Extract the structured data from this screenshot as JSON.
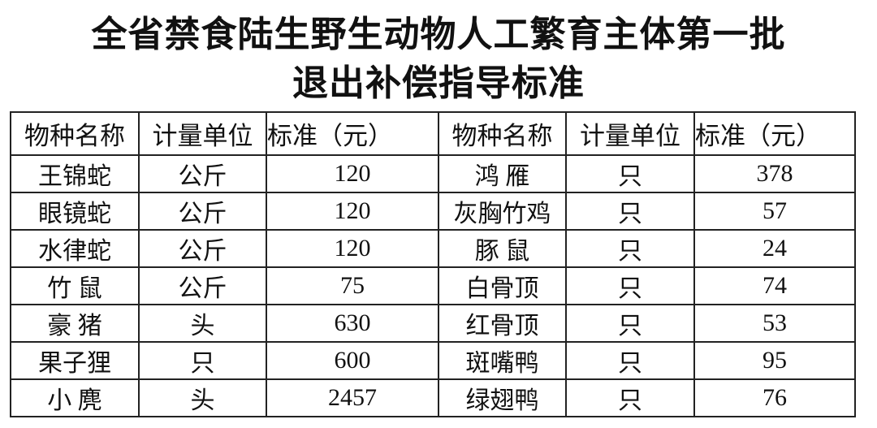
{
  "title": {
    "line1": "全省禁食陆生野生动物人工繁育主体第一批",
    "line2": "退出补偿指导标准"
  },
  "table": {
    "headers": [
      "物种名称",
      "计量单位",
      "标准（元）",
      "物种名称",
      "计量单位",
      "标准（元）"
    ],
    "rows": [
      [
        "王锦蛇",
        "公斤",
        "120",
        "鸿 雁",
        "只",
        "378"
      ],
      [
        "眼镜蛇",
        "公斤",
        "120",
        "灰胸竹鸡",
        "只",
        "57"
      ],
      [
        "水律蛇",
        "公斤",
        "120",
        "豚 鼠",
        "只",
        "24"
      ],
      [
        "竹 鼠",
        "公斤",
        "75",
        "白骨顶",
        "只",
        "74"
      ],
      [
        "豪 猪",
        "头",
        "630",
        "红骨顶",
        "只",
        "53"
      ],
      [
        "果子狸",
        "只",
        "600",
        "斑嘴鸭",
        "只",
        "95"
      ],
      [
        "小 麂",
        "头",
        "2457",
        "绿翅鸭",
        "只",
        "76"
      ]
    ]
  }
}
